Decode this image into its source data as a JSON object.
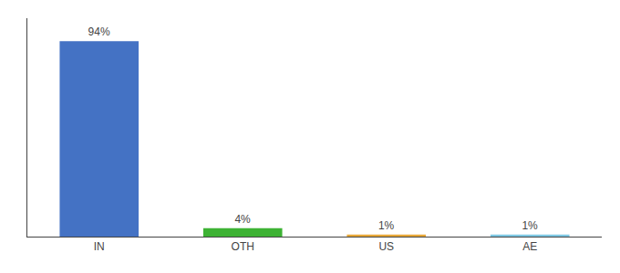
{
  "chart_data": {
    "type": "bar",
    "categories": [
      "IN",
      "OTH",
      "US",
      "AE"
    ],
    "values": [
      94,
      4,
      1,
      1
    ],
    "value_labels": [
      "94%",
      "4%",
      "1%",
      "1%"
    ],
    "data_labels": true,
    "colors": [
      "#4472c4",
      "#3db234",
      "#e8a838",
      "#7ec8e3"
    ],
    "ylim": [
      0,
      105
    ],
    "grid": false,
    "tick_labels": "x"
  }
}
